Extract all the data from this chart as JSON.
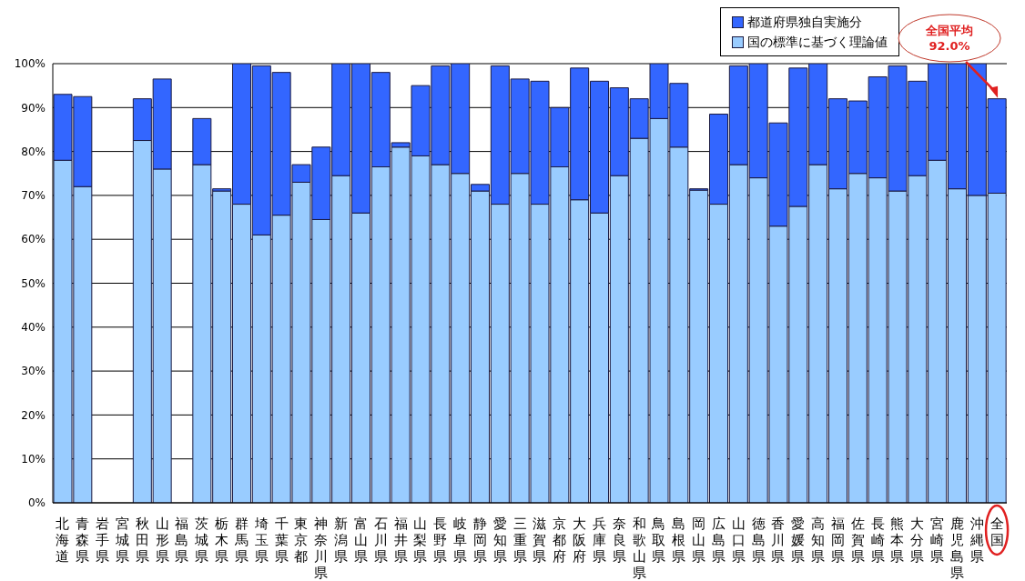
{
  "chart_data": {
    "type": "bar",
    "stacked": true,
    "categories": [
      "北海道",
      "青森県",
      "岩手県",
      "宮城県",
      "秋田県",
      "山形県",
      "福島県",
      "茨城県",
      "栃木県",
      "群馬県",
      "埼玉県",
      "千葉県",
      "東京都",
      "神奈川県",
      "新潟県",
      "富山県",
      "石川県",
      "福井県",
      "山梨県",
      "長野県",
      "岐阜県",
      "静岡県",
      "愛知県",
      "三重県",
      "滋賀県",
      "京都府",
      "大阪府",
      "兵庫県",
      "奈良県",
      "和歌山県",
      "鳥取県",
      "島根県",
      "岡山県",
      "広島県",
      "山口県",
      "徳島県",
      "香川県",
      "愛媛県",
      "高知県",
      "福岡県",
      "佐賀県",
      "長崎県",
      "熊本県",
      "大分県",
      "宮崎県",
      "鹿児島県",
      "沖縄県",
      "全国"
    ],
    "series": [
      {
        "name": "国の標準に基づく理論値",
        "color": "#99ccff",
        "values": [
          78,
          72,
          null,
          null,
          82.5,
          76,
          null,
          77,
          71,
          68,
          61,
          65.5,
          73,
          64.5,
          74.5,
          66,
          76.5,
          81,
          79,
          77,
          75,
          71,
          68,
          75,
          68,
          76.5,
          69,
          66,
          74.5,
          83,
          87.5,
          81,
          71.2,
          68,
          77,
          74,
          63,
          67.5,
          77,
          71.5,
          75,
          74,
          71,
          74.5,
          78,
          71.5,
          70,
          70.5
        ]
      },
      {
        "name": "都道府県独自実施分",
        "color": "#3366ff",
        "values": [
          15,
          20.5,
          null,
          null,
          9.5,
          20.5,
          null,
          10.5,
          0.5,
          32,
          38.5,
          32.5,
          4,
          16.5,
          25.5,
          34,
          21.5,
          1,
          16,
          22.5,
          25,
          1.5,
          31.5,
          21.5,
          28,
          13.5,
          30,
          30,
          20,
          9,
          12.5,
          14.5,
          0.3,
          20.5,
          22.5,
          26,
          23.5,
          31.5,
          23,
          20.5,
          16.5,
          23,
          28.5,
          21.5,
          22,
          28.5,
          30,
          21.5
        ]
      }
    ],
    "ylim": [
      0,
      100
    ],
    "yticks": [
      {
        "value": 0,
        "label": "0%"
      },
      {
        "value": 10,
        "label": "10%"
      },
      {
        "value": 20,
        "label": "20%"
      },
      {
        "value": 30,
        "label": "30%"
      },
      {
        "value": 40,
        "label": "40%"
      },
      {
        "value": 50,
        "label": "50%"
      },
      {
        "value": 60,
        "label": "60%"
      },
      {
        "value": 70,
        "label": "70%"
      },
      {
        "value": 80,
        "label": "80%"
      },
      {
        "value": 90,
        "label": "90%"
      },
      {
        "value": 100,
        "label": "100%"
      }
    ],
    "grid": "y",
    "legend": "top right",
    "annotations": [
      {
        "text": "全国平均\n92.0%",
        "x": "全国",
        "y": 92
      }
    ]
  }
}
